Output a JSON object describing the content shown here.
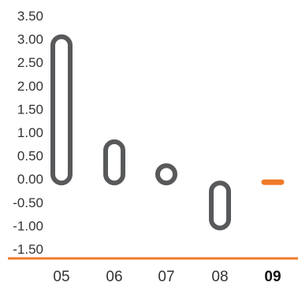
{
  "chart_data": {
    "type": "bar",
    "categories": [
      "05",
      "06",
      "07",
      "08",
      "09"
    ],
    "values": [
      3.05,
      0.8,
      0.2,
      -1.05,
      0.0
    ],
    "highlight_category": "09",
    "y_ticks": [
      "3.50",
      "3.00",
      "2.50",
      "2.00",
      "1.50",
      "1.00",
      "0.50",
      "0.00",
      "-0.50",
      "-1.00",
      "-1.50"
    ],
    "ylim": [
      -1.5,
      3.5
    ],
    "title": "",
    "xlabel": "",
    "ylabel": "",
    "grid": false,
    "colors": {
      "bar": "#58595b",
      "highlight": "#f07a2a",
      "axis": "#f07a2a",
      "text": "#333333"
    }
  }
}
